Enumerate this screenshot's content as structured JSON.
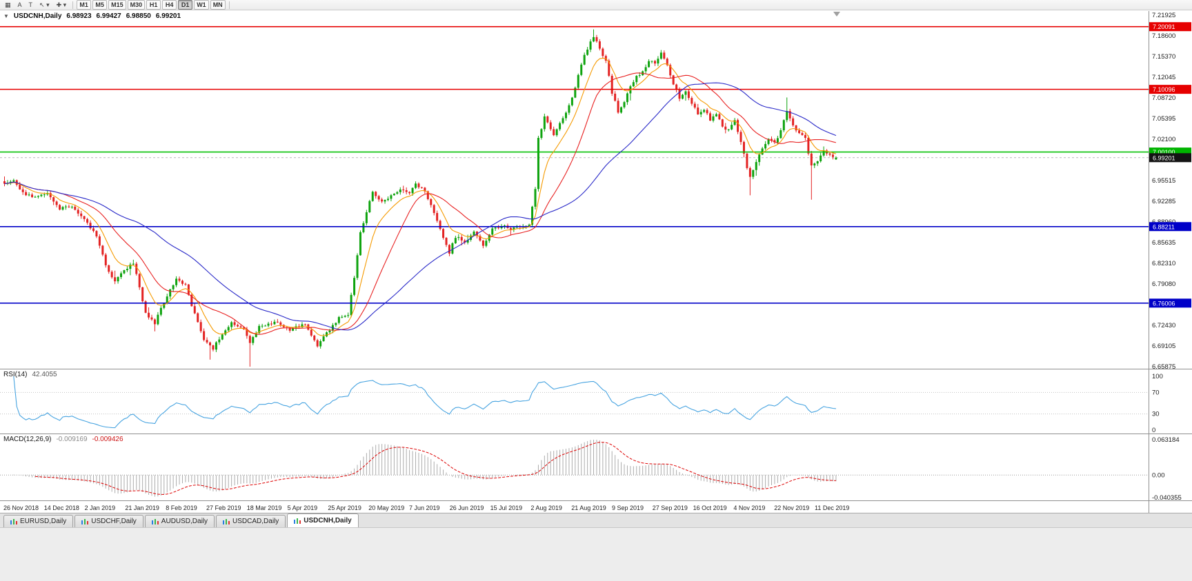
{
  "toolbar": {
    "tools": [
      {
        "name": "charts-grid-icon",
        "glyph": "▦"
      },
      {
        "name": "arrow-tool-button",
        "glyph": "A"
      },
      {
        "name": "text-tool-button",
        "glyph": "T"
      },
      {
        "name": "cursor-tool-button",
        "glyph": "↖",
        "caret": true
      },
      {
        "name": "crosshair-tool-button",
        "glyph": "✚",
        "caret": true
      }
    ],
    "timeframes": [
      {
        "label": "M1"
      },
      {
        "label": "M5"
      },
      {
        "label": "M15"
      },
      {
        "label": "M30"
      },
      {
        "label": "H1"
      },
      {
        "label": "H4"
      },
      {
        "label": "D1",
        "active": true
      },
      {
        "label": "W1"
      },
      {
        "label": "MN"
      }
    ]
  },
  "chart": {
    "legend": {
      "symbol": "USDCNH,Daily",
      "open": "6.98923",
      "high": "6.99427",
      "low": "6.98850",
      "close": "6.99201"
    },
    "y_axis": [
      "7.21925",
      "7.18600",
      "7.15370",
      "7.12045",
      "7.08720",
      "7.05395",
      "7.02100",
      "6.98810",
      "6.95515",
      "6.92285",
      "6.88960",
      "6.85635",
      "6.82310",
      "6.79080",
      "6.75755",
      "6.72430",
      "6.69105",
      "6.65875"
    ]
  },
  "hlines": [
    {
      "price": 7.20091,
      "label": "7.20091",
      "color": "#e60000",
      "badge": "#e60000"
    },
    {
      "price": 7.10096,
      "label": "7.10096",
      "color": "#e60000",
      "badge": "#e60000"
    },
    {
      "price": 7.001,
      "label": "7.00100",
      "color": "#00c000",
      "badge": "#00b400"
    },
    {
      "price": 6.88211,
      "label": "6.88211",
      "color": "#0000c8",
      "badge": "#0000c8"
    },
    {
      "price": 6.76006,
      "label": "6.76006",
      "color": "#0000c8",
      "badge": "#0000c8"
    }
  ],
  "current_price": {
    "value": 6.99201,
    "label": "6.99201",
    "line_color": "#b8b8b8",
    "badge_bg": "#141414"
  },
  "x_axis": {
    "labels": [
      "26 Nov 2018",
      "14 Dec 2018",
      "2 Jan 2019",
      "21 Jan 2019",
      "8 Feb 2019",
      "27 Feb 2019",
      "18 Mar 2019",
      "5 Apr 2019",
      "25 Apr 2019",
      "20 May 2019",
      "7 Jun 2019",
      "26 Jun 2019",
      "15 Jul 2019",
      "2 Aug 2019",
      "21 Aug 2019",
      "9 Sep 2019",
      "27 Sep 2019",
      "16 Oct 2019",
      "4 Nov 2019",
      "22 Nov 2019",
      "11 Dec 2019"
    ]
  },
  "chart_data": {
    "type": "candlestick",
    "symbol": "USDCNH",
    "timeframe": "Daily",
    "ohlc_current": {
      "open": 6.98923,
      "high": 6.99427,
      "low": 6.9885,
      "close": 6.99201
    },
    "ylim": [
      6.65875,
      7.21925
    ],
    "n_candles": 272,
    "volatility": 0.0045,
    "up_color": "#0ea30e",
    "down_color": "#e32222",
    "close_anchors": [
      [
        0,
        6.952
      ],
      [
        3,
        6.958
      ],
      [
        6,
        6.936
      ],
      [
        10,
        6.928
      ],
      [
        14,
        6.936
      ],
      [
        18,
        6.91
      ],
      [
        22,
        6.916
      ],
      [
        26,
        6.892
      ],
      [
        30,
        6.868
      ],
      [
        33,
        6.82
      ],
      [
        36,
        6.795
      ],
      [
        39,
        6.812
      ],
      [
        42,
        6.825
      ],
      [
        46,
        6.745
      ],
      [
        49,
        6.728
      ],
      [
        52,
        6.762
      ],
      [
        56,
        6.798
      ],
      [
        59,
        6.788
      ],
      [
        62,
        6.742
      ],
      [
        65,
        6.7
      ],
      [
        68,
        6.688
      ],
      [
        71,
        6.712
      ],
      [
        74,
        6.728
      ],
      [
        78,
        6.718
      ],
      [
        80,
        6.696
      ],
      [
        83,
        6.722
      ],
      [
        88,
        6.73
      ],
      [
        93,
        6.718
      ],
      [
        98,
        6.726
      ],
      [
        102,
        6.692
      ],
      [
        105,
        6.712
      ],
      [
        109,
        6.736
      ],
      [
        112,
        6.742
      ],
      [
        114,
        6.802
      ],
      [
        116,
        6.872
      ],
      [
        118,
        6.906
      ],
      [
        120,
        6.938
      ],
      [
        123,
        6.92
      ],
      [
        126,
        6.931
      ],
      [
        129,
        6.943
      ],
      [
        132,
        6.936
      ],
      [
        134,
        6.951
      ],
      [
        137,
        6.939
      ],
      [
        140,
        6.906
      ],
      [
        143,
        6.862
      ],
      [
        145,
        6.841
      ],
      [
        147,
        6.866
      ],
      [
        150,
        6.858
      ],
      [
        153,
        6.873
      ],
      [
        156,
        6.851
      ],
      [
        159,
        6.879
      ],
      [
        162,
        6.883
      ],
      [
        165,
        6.879
      ],
      [
        168,
        6.883
      ],
      [
        171,
        6.886
      ],
      [
        173,
        6.94
      ],
      [
        174,
        7.022
      ],
      [
        176,
        7.056
      ],
      [
        179,
        7.028
      ],
      [
        181,
        7.046
      ],
      [
        183,
        7.062
      ],
      [
        185,
        7.086
      ],
      [
        187,
        7.122
      ],
      [
        189,
        7.156
      ],
      [
        192,
        7.186
      ],
      [
        194,
        7.166
      ],
      [
        196,
        7.146
      ],
      [
        198,
        7.096
      ],
      [
        200,
        7.066
      ],
      [
        202,
        7.082
      ],
      [
        204,
        7.106
      ],
      [
        206,
        7.122
      ],
      [
        208,
        7.128
      ],
      [
        210,
        7.148
      ],
      [
        212,
        7.142
      ],
      [
        214,
        7.158
      ],
      [
        216,
        7.138
      ],
      [
        218,
        7.108
      ],
      [
        220,
        7.088
      ],
      [
        222,
        7.096
      ],
      [
        224,
        7.078
      ],
      [
        226,
        7.062
      ],
      [
        228,
        7.07
      ],
      [
        230,
        7.052
      ],
      [
        232,
        7.06
      ],
      [
        234,
        7.042
      ],
      [
        236,
        7.035
      ],
      [
        238,
        7.052
      ],
      [
        240,
        7.018
      ],
      [
        242,
        6.976
      ],
      [
        243,
        6.96
      ],
      [
        245,
        6.986
      ],
      [
        247,
        7.008
      ],
      [
        249,
        7.022
      ],
      [
        251,
        7.015
      ],
      [
        253,
        7.035
      ],
      [
        255,
        7.068
      ],
      [
        257,
        7.042
      ],
      [
        259,
        7.03
      ],
      [
        261,
        7.022
      ],
      [
        263,
        6.978
      ],
      [
        265,
        6.988
      ],
      [
        267,
        7.002
      ],
      [
        269,
        6.998
      ],
      [
        271,
        6.992
      ]
    ],
    "spikes": [
      {
        "i": 67,
        "low": 6.67
      },
      {
        "i": 80,
        "low": 6.658
      },
      {
        "i": 192,
        "high": 7.1966
      },
      {
        "i": 243,
        "low": 6.932
      },
      {
        "i": 255,
        "high": 7.088
      },
      {
        "i": 263,
        "low": 6.925
      }
    ],
    "moving_averages": [
      {
        "period": 9,
        "type": "ema",
        "color": "#f59a00"
      },
      {
        "period": 20,
        "type": "sma",
        "color": "#e82020"
      },
      {
        "period": 50,
        "type": "sma",
        "color": "#2828c8"
      }
    ]
  },
  "rsi": {
    "title": "RSI(14)",
    "value": "42.4055",
    "period": 14,
    "levels": [
      100,
      70,
      30,
      0
    ],
    "line_color": "#46a3e0"
  },
  "macd": {
    "title": "MACD(12,26,9)",
    "value_main": "-0.009169",
    "value_signal": "-0.009426",
    "fast": 12,
    "slow": 26,
    "signal": 9,
    "axis": [
      "0.063184",
      "0.00",
      "-0.040355"
    ],
    "range": [
      -0.040355,
      0.063184
    ],
    "hist_color": "#ababab",
    "signal_color": "#dd0000"
  },
  "tabs": [
    {
      "label": "EURUSD,Daily"
    },
    {
      "label": "USDCHF,Daily"
    },
    {
      "label": "AUDUSD,Daily"
    },
    {
      "label": "USDCAD,Daily"
    },
    {
      "label": "USDCNH,Daily",
      "active": true
    }
  ]
}
